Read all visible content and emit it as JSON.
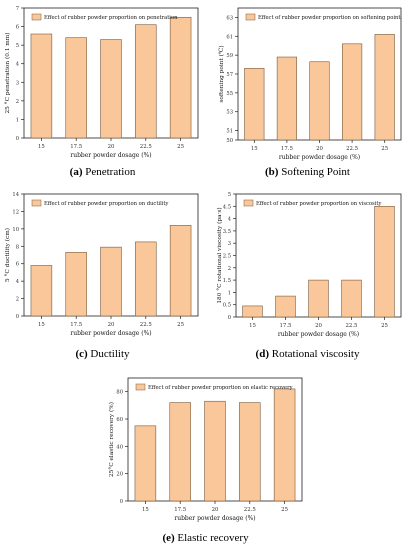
{
  "chart_data": [
    {
      "type": "bar",
      "categories": [
        "15",
        "17.5",
        "20",
        "22.5",
        "25"
      ],
      "values": [
        5.6,
        5.4,
        5.3,
        6.1,
        6.5
      ],
      "legend": "Effect of rubber powder proportion on penetration",
      "xlabel": "rubber powder dosage (%)",
      "ylabel": "25 °C penetration (0.1 mm)",
      "ylim": [
        0,
        7
      ],
      "yticks": [
        "0",
        "1",
        "2",
        "3",
        "4",
        "5",
        "6",
        "7"
      ],
      "caption_letter": "(a)",
      "caption_text": "Penetration"
    },
    {
      "type": "bar",
      "categories": [
        "15",
        "17.5",
        "20",
        "22.5",
        "25"
      ],
      "values": [
        57.6,
        58.8,
        58.3,
        60.2,
        61.2
      ],
      "legend": "Effect of rubber powder proportion on softening point",
      "xlabel": "rubber powder dosage (%)",
      "ylabel": "softening point (℃)",
      "ylim": [
        50,
        64
      ],
      "yticks": [
        "50",
        "51",
        "53",
        "55",
        "57",
        "59",
        "61",
        "63"
      ],
      "caption_letter": "(b)",
      "caption_text": "Softening Point"
    },
    {
      "type": "bar",
      "categories": [
        "15",
        "17.5",
        "20",
        "22.5",
        "25"
      ],
      "values": [
        5.8,
        7.3,
        7.9,
        8.5,
        10.4
      ],
      "legend": "Effect of rubber powder proportion on ductility",
      "xlabel": "rubber powder dosage (%)",
      "ylabel": "5 °C ductility (cm)",
      "ylim": [
        0,
        14
      ],
      "yticks": [
        "0",
        "2",
        "4",
        "6",
        "8",
        "10",
        "12",
        "14"
      ],
      "caption_letter": "(c)",
      "caption_text": "Ductility"
    },
    {
      "type": "bar",
      "categories": [
        "15",
        "17.5",
        "20",
        "22.5",
        "25"
      ],
      "values": [
        0.45,
        0.85,
        1.5,
        1.5,
        4.5
      ],
      "legend": "Effect of rubber powder proportion on viscosity",
      "xlabel": "rubber powder dosage (%)",
      "ylabel": "180 °C rotational viscosity (pa·s)",
      "ylim": [
        0,
        5
      ],
      "yticks": [
        "0",
        "0.5",
        "1",
        "1.5",
        "2",
        "2.5",
        "3",
        "3.5",
        "4",
        "4.5",
        "5"
      ],
      "caption_letter": "(d)",
      "caption_text": "Rotational viscosity"
    },
    {
      "type": "bar",
      "categories": [
        "15",
        "17.5",
        "20",
        "22.5",
        "25"
      ],
      "values": [
        55,
        72,
        73,
        72,
        82
      ],
      "legend": "Effect of rubber powder proportion on elastic recovery",
      "xlabel": "rubber powder dosage (%)",
      "ylabel": "25°C elastic recovery (%)",
      "ylim": [
        0,
        90
      ],
      "yticks": [
        "0",
        "20",
        "40",
        "60",
        "80"
      ],
      "caption_letter": "(e)",
      "caption_text": "Elastic recovery"
    }
  ],
  "colors": {
    "bar_fill": "#f9c79a",
    "bar_stroke": "#7a5a3a",
    "axis": "#222222"
  }
}
